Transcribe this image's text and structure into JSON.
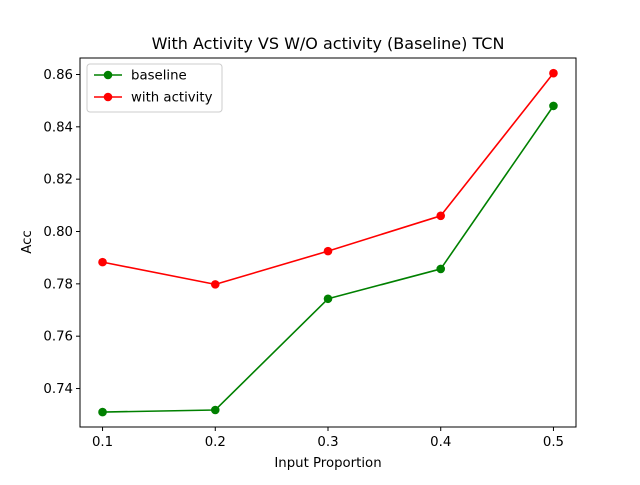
{
  "chart_data": {
    "type": "line",
    "title": "With Activity VS W/O activity (Baseline) TCN",
    "xlabel": "Input Proportion",
    "ylabel": "Acc",
    "x": [
      0.1,
      0.2,
      0.3,
      0.4,
      0.5
    ],
    "x_tick_labels": [
      "0.1",
      "0.2",
      "0.3",
      "0.4",
      "0.5"
    ],
    "y_ticks": [
      0.74,
      0.76,
      0.78,
      0.8,
      0.82,
      0.84,
      0.86
    ],
    "y_tick_labels": [
      "0.74",
      "0.76",
      "0.78",
      "0.80",
      "0.82",
      "0.84",
      "0.86"
    ],
    "xlim": [
      0.08,
      0.52
    ],
    "ylim": [
      0.7253,
      0.8663
    ],
    "grid": false,
    "legend_position": "top-left",
    "series": [
      {
        "name": "baseline",
        "color": "#008000",
        "marker": "circle",
        "values": [
          0.731,
          0.7318,
          0.7743,
          0.7857,
          0.848
        ]
      },
      {
        "name": "with activity",
        "color": "#ff0000",
        "marker": "circle",
        "values": [
          0.7883,
          0.7798,
          0.7925,
          0.806,
          0.8605
        ]
      }
    ]
  }
}
